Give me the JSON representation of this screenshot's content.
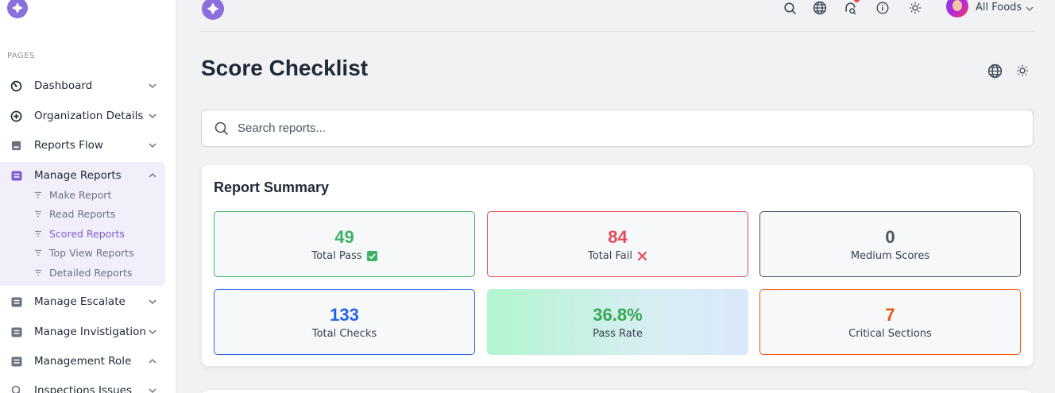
{
  "sidebar": {
    "section_label": "PAGES",
    "items": [
      {
        "label": "Dashboard",
        "icon": "dashboard-icon"
      },
      {
        "label": "Organization Details",
        "icon": "plus-circle-icon"
      },
      {
        "label": "Reports Flow",
        "icon": "square-icon"
      },
      {
        "label": "Manage Reports",
        "icon": "list-box-icon"
      },
      {
        "label": "Manage Escalate",
        "icon": "list-box-icon"
      },
      {
        "label": "Manage Invistigation",
        "icon": "list-box-icon"
      },
      {
        "label": "Management Role",
        "icon": "list-box-icon"
      },
      {
        "label": "Inspections Issues",
        "icon": "search-icon"
      }
    ],
    "sub_items": [
      {
        "label": "Make Report"
      },
      {
        "label": "Read Reports"
      },
      {
        "label": "Scored Reports"
      },
      {
        "label": "Top View Reports"
      },
      {
        "label": "Detailed Reports"
      }
    ]
  },
  "topbar": {
    "icons": [
      "search-icon",
      "globe-icon",
      "notification-search-icon",
      "info-icon",
      "sun-icon"
    ],
    "user_name": "All Foods"
  },
  "page": {
    "title": "Score Checklist"
  },
  "search": {
    "placeholder": "Search reports..."
  },
  "summary": {
    "title": "Report Summary",
    "stats": [
      {
        "value": "49",
        "caption": "Total Pass",
        "color": "#3fb263",
        "badge": "check-box-icon"
      },
      {
        "value": "84",
        "caption": "Total Fail",
        "color": "#e34c58",
        "badge": "cross-icon"
      },
      {
        "value": "0",
        "caption": "Medium Scores",
        "color": "#4b5563"
      },
      {
        "value": "133",
        "caption": "Total Checks",
        "color": "#2563eb"
      },
      {
        "value": "36.8%",
        "caption": "Pass Rate",
        "color": "#34a853"
      },
      {
        "value": "7",
        "caption": "Critical Sections",
        "color": "#ea580c"
      }
    ]
  },
  "colors": {
    "accent": "#7c5cd6",
    "pass_border": "#3fb263",
    "fail_border": "#e34c58",
    "medium_border": "#4b5563",
    "checks_border": "#2563eb",
    "critical_border": "#ea580c"
  }
}
